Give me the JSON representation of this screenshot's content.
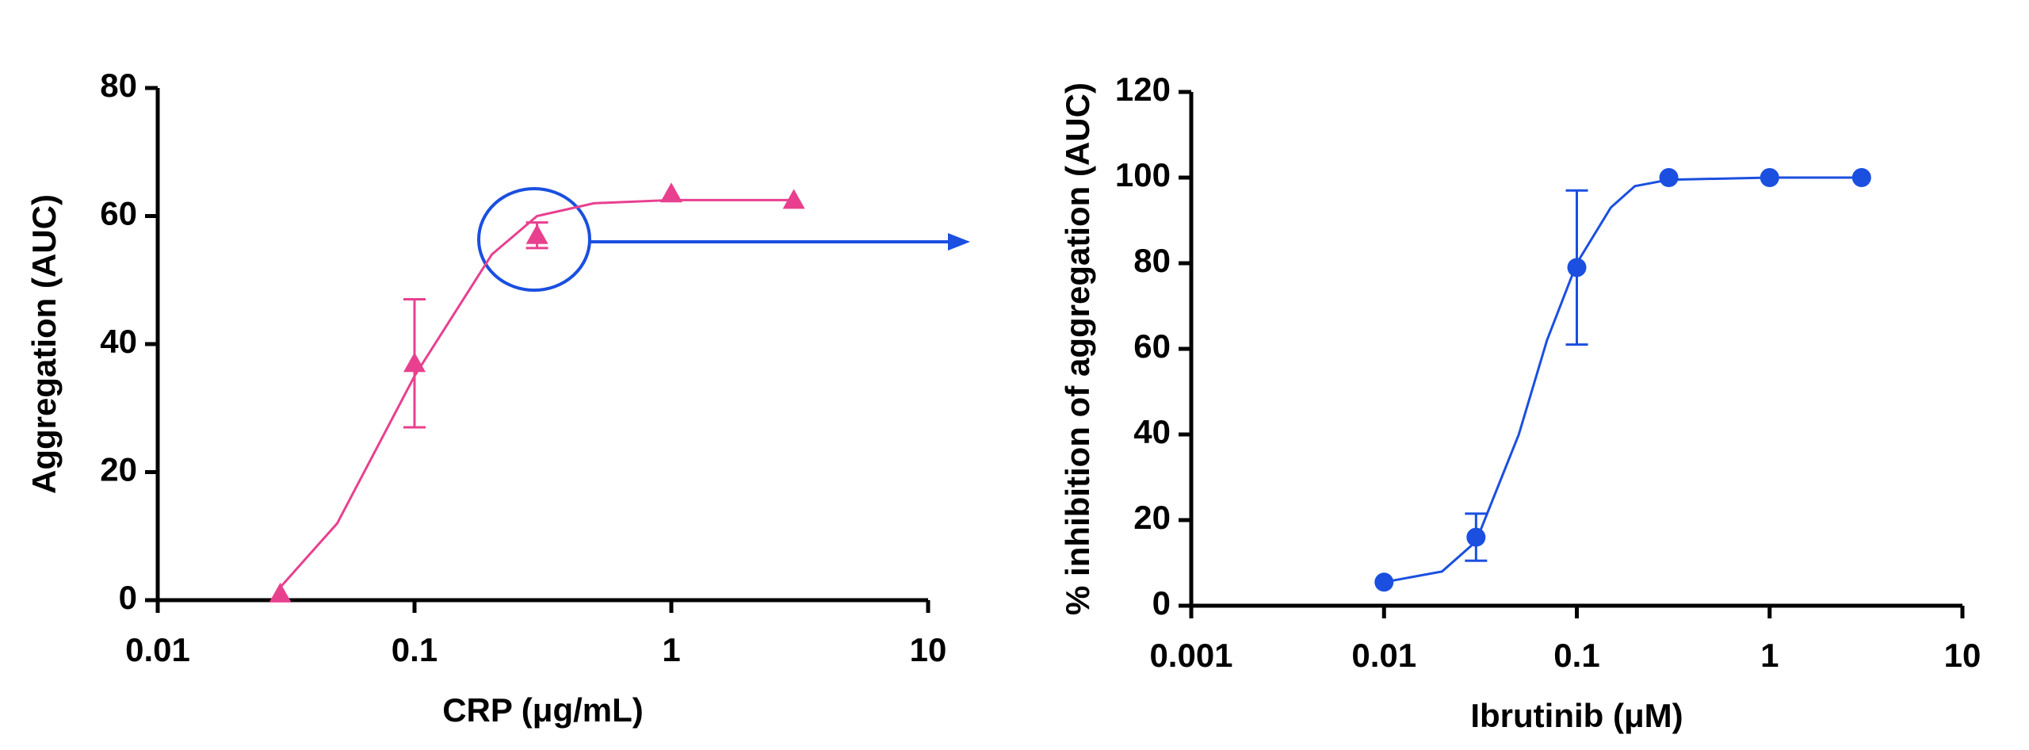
{
  "chart_data": [
    {
      "type": "scatter",
      "x_label": "CRP (μg/mL)",
      "y_label": "Aggregation (AUC)",
      "log_x": true,
      "xlim": [
        0.01,
        10
      ],
      "xticks": [
        0.01,
        0.1,
        1,
        10
      ],
      "ylim": [
        0,
        80
      ],
      "yticks": [
        0,
        20,
        40,
        60,
        80
      ],
      "marker": "triangle",
      "color": "#e8408f",
      "x": [
        0.03,
        0.1,
        0.3,
        1,
        3
      ],
      "values": [
        1,
        37,
        57,
        63.5,
        62.5
      ],
      "errors": [
        null,
        10,
        2,
        null,
        null
      ],
      "fit": {
        "x": [
          0.03,
          0.05,
          0.1,
          0.2,
          0.3,
          0.5,
          1,
          3
        ],
        "values": [
          2,
          12,
          35,
          54,
          60,
          62,
          62.5,
          62.5
        ]
      }
    },
    {
      "type": "scatter",
      "x_label": "Ibrutinib (μM)",
      "y_label": "% inhibition of aggregation (AUC)",
      "log_x": true,
      "xlim": [
        0.001,
        10
      ],
      "xticks": [
        0.001,
        0.01,
        0.1,
        1,
        10
      ],
      "ylim": [
        0,
        120
      ],
      "yticks": [
        0,
        20,
        40,
        60,
        80,
        100,
        120
      ],
      "marker": "circle",
      "color": "#1a4fe0",
      "x": [
        0.01,
        0.03,
        0.1,
        0.3,
        1,
        3
      ],
      "values": [
        5.5,
        16,
        79,
        100,
        100,
        100
      ],
      "errors": [
        null,
        5.5,
        18,
        null,
        null,
        null
      ],
      "fit": {
        "x": [
          0.01,
          0.02,
          0.03,
          0.05,
          0.07,
          0.1,
          0.15,
          0.2,
          0.3,
          1,
          3
        ],
        "values": [
          5.5,
          8,
          15,
          40,
          62,
          80,
          93,
          98,
          99.5,
          100,
          100
        ]
      }
    }
  ]
}
